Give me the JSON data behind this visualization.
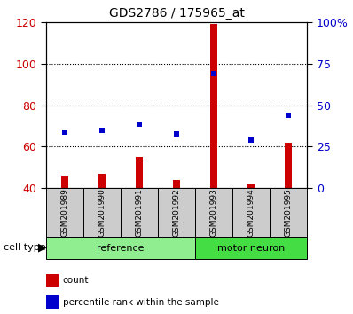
{
  "title": "GDS2786 / 175965_at",
  "categories": [
    "GSM201989",
    "GSM201990",
    "GSM201991",
    "GSM201992",
    "GSM201993",
    "GSM201994",
    "GSM201995"
  ],
  "red_values": [
    46,
    47,
    55,
    44,
    119,
    42,
    62
  ],
  "blue_values": [
    67,
    68,
    71,
    66,
    95,
    63,
    75
  ],
  "ylim": [
    40,
    120
  ],
  "left_ticks": [
    40,
    60,
    80,
    100,
    120
  ],
  "right_tick_labels": [
    "0",
    "25",
    "50",
    "75",
    "100%"
  ],
  "groups": [
    {
      "label": "reference",
      "start": 0,
      "end": 3,
      "color": "#90ee90"
    },
    {
      "label": "motor neuron",
      "start": 4,
      "end": 6,
      "color": "#44dd44"
    }
  ],
  "cell_type_label": "cell type",
  "legend_items": [
    {
      "label": "count",
      "color": "#cc0000"
    },
    {
      "label": "percentile rank within the sample",
      "color": "#0000cc"
    }
  ],
  "bar_color": "#cc0000",
  "dot_color": "#0000cc",
  "left_tick_color": "#cc0000",
  "right_tick_color": "#0000cc",
  "sample_box_color": "#cccccc",
  "ref_group_color": "#90ee90",
  "motor_group_color": "#44dd44"
}
